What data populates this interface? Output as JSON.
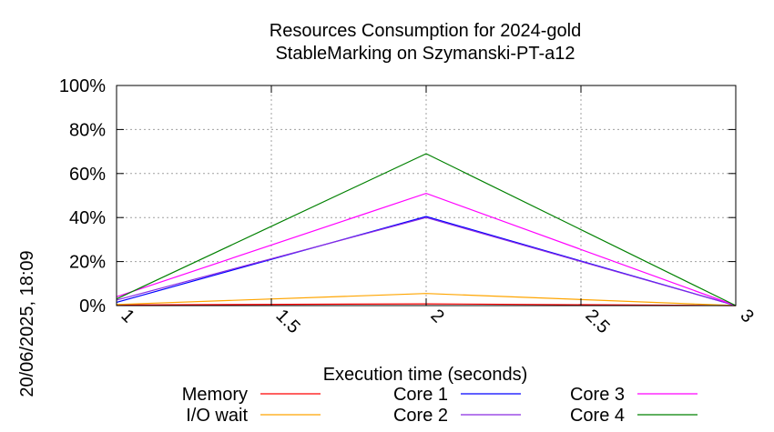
{
  "side_label": "20/06/2025, 18:09",
  "chart_data": {
    "type": "line",
    "title": "Resources Consumption for 2024-gold",
    "subtitle": "StableMarking on Szymanski-PT-a12",
    "xlabel": "Execution time (seconds)",
    "ylabel": "",
    "xlim": [
      1,
      3
    ],
    "ylim": [
      0,
      100
    ],
    "x_ticks": [
      1,
      1.5,
      2,
      2.5,
      3
    ],
    "x_tick_labels": [
      "1",
      "1.5",
      "2",
      "2.5",
      "3"
    ],
    "y_ticks": [
      0,
      20,
      40,
      60,
      80,
      100
    ],
    "y_tick_labels": [
      "0%",
      "20%",
      "40%",
      "60%",
      "80%",
      "100%"
    ],
    "grid": true,
    "legend_position": "bottom",
    "x": [
      1,
      2,
      3
    ],
    "series": [
      {
        "name": "Memory",
        "color": "#ff0000",
        "values": [
          0.3,
          0.8,
          0
        ]
      },
      {
        "name": "I/O wait",
        "color": "#ffa500",
        "values": [
          0.5,
          5.5,
          0
        ]
      },
      {
        "name": "Core 1",
        "color": "#0000ff",
        "values": [
          1.5,
          40.5,
          0
        ]
      },
      {
        "name": "Core 2",
        "color": "#8a2be2",
        "values": [
          2.5,
          40,
          0
        ]
      },
      {
        "name": "Core 3",
        "color": "#ff00ff",
        "values": [
          4,
          51,
          0
        ]
      },
      {
        "name": "Core 4",
        "color": "#008000",
        "values": [
          3,
          69,
          0
        ]
      }
    ]
  }
}
